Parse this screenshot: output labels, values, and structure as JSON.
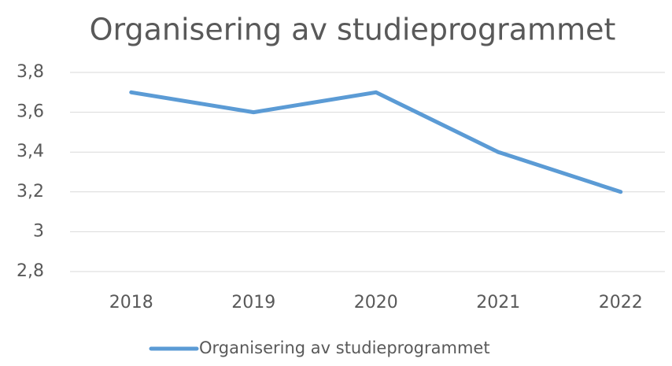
{
  "chart_data": {
    "type": "line",
    "title": "Organisering av studieprogrammet",
    "categories": [
      "2018",
      "2019",
      "2020",
      "2021",
      "2022"
    ],
    "series": [
      {
        "name": "Organisering av studieprogrammet",
        "color": "#5b9bd5",
        "values": [
          3.7,
          3.6,
          3.7,
          3.4,
          3.2
        ]
      }
    ],
    "ylim": [
      2.8,
      3.8
    ],
    "yticks": [
      {
        "value": 2.8,
        "label": "2,8"
      },
      3,
      {
        "value": 3.2,
        "label": "3,2"
      },
      {
        "value": 3.4,
        "label": "3,4"
      },
      {
        "value": 3.6,
        "label": "3,6"
      },
      {
        "value": 3.8,
        "label": "3,8"
      }
    ],
    "grid": true,
    "legend": "bottom"
  }
}
